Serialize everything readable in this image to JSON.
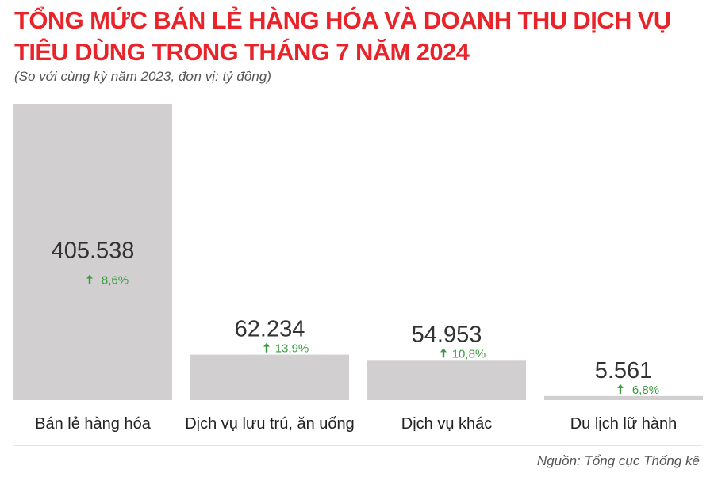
{
  "title": "TỔNG MỨC BÁN LẺ HÀNG HÓA VÀ DOANH THU DỊCH VỤ TIÊU DÙNG TRONG THÁNG 7 NĂM 2024",
  "subtitle": "(So với cùng kỳ năm 2023, đơn vị: tỷ đồng)",
  "source": "Nguồn: Tổng cục Thống kê",
  "colors": {
    "title": "#e8242a",
    "bar": "#d1cfd0",
    "value": "#333333",
    "growth": "#3a9a3f",
    "axis": "#dddddd"
  },
  "chart_data": {
    "type": "bar",
    "categories": [
      "Bán lẻ hàng hóa",
      "Dịch vụ lưu trú, ăn uống",
      "Dịch vụ khác",
      "Du lịch lữ hành"
    ],
    "value_labels": [
      "405.538",
      "62.234",
      "54.953",
      "5.561"
    ],
    "growth_labels": [
      "8,6%",
      "13,9%",
      "10,8%",
      "6,8%"
    ],
    "growth_icon": "up-arrow-icon",
    "series": [
      {
        "values": [
          405538,
          62234,
          54953,
          5561
        ]
      }
    ],
    "ylim": [
      0,
      405538
    ],
    "grid": false,
    "legend": "none"
  }
}
